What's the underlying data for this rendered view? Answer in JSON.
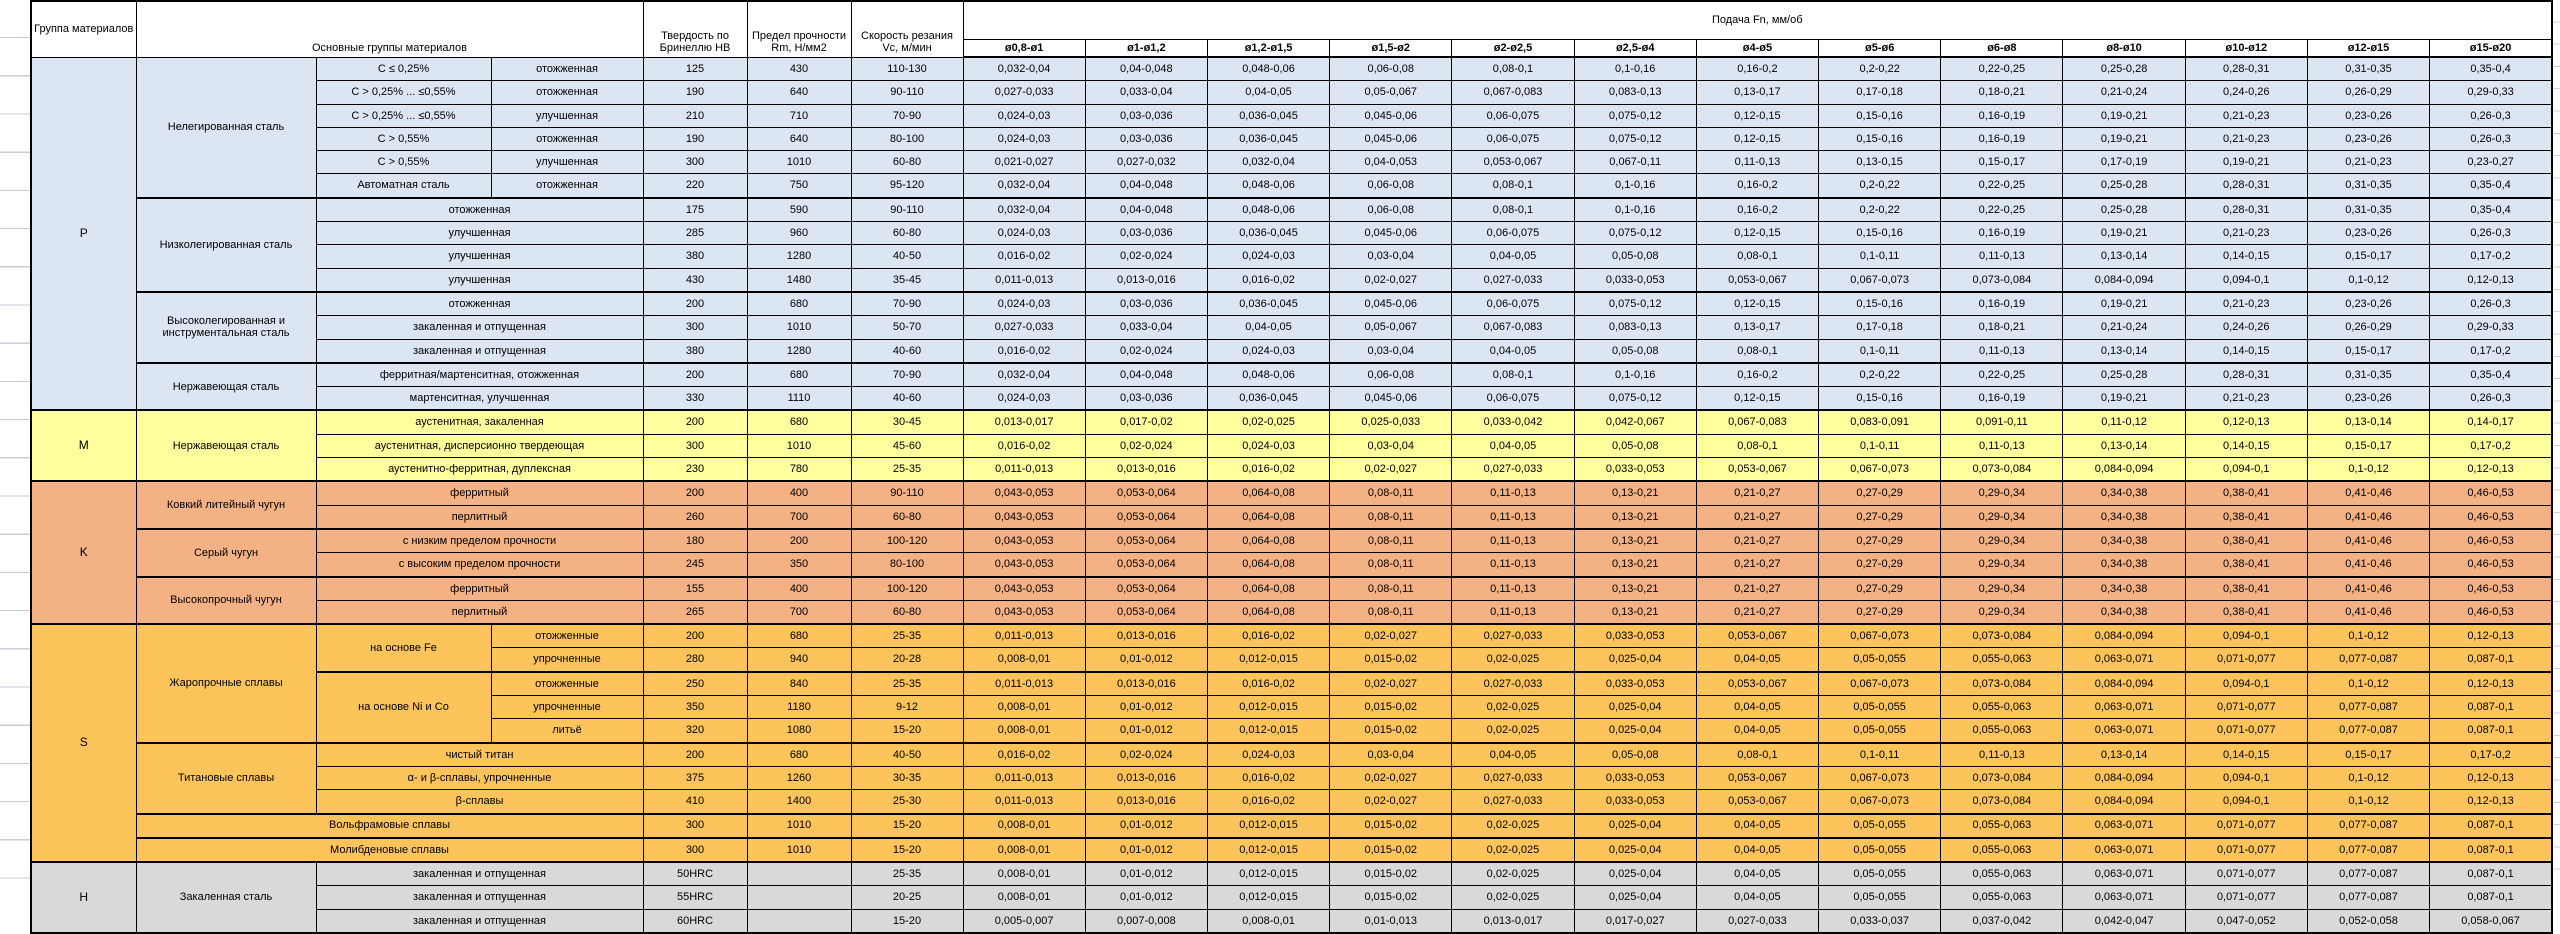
{
  "header": {
    "group_col": "Группа материалов",
    "materials_col": "Основные группы материалов",
    "hardness_col": "Твердость по Бринеллю HB",
    "strength_col": "Предел прочности Rm, Н/мм2",
    "speed_col": "Скорость резания Vc, м/мин",
    "feed_col": "Подача Fn, мм/об",
    "feed_columns": [
      "ø0,8-ø1",
      "ø1-ø1,2",
      "ø1,2-ø1,5",
      "ø1,5-ø2",
      "ø2-ø2,5",
      "ø2,5-ø4",
      "ø4-ø5",
      "ø5-ø6",
      "ø6-ø8",
      "ø8-ø10",
      "ø10-ø12",
      "ø12-ø15",
      "ø15-ø20"
    ]
  },
  "group_colors": {
    "P": "#dce6f2",
    "M": "#ffff9e",
    "K": "#f4b183",
    "S": "#fcc45a",
    "H": "#d9d9d9"
  },
  "feed_patterns": {
    "A": [
      "0,032-0,04",
      "0,04-0,048",
      "0,048-0,06",
      "0,06-0,08",
      "0,08-0,1",
      "0,1-0,16",
      "0,16-0,2",
      "0,2-0,22",
      "0,22-0,25",
      "0,25-0,28",
      "0,28-0,31",
      "0,31-0,35",
      "0,35-0,4"
    ],
    "B": [
      "0,027-0,033",
      "0,033-0,04",
      "0,04-0,05",
      "0,05-0,067",
      "0,067-0,083",
      "0,083-0,13",
      "0,13-0,17",
      "0,17-0,18",
      "0,18-0,21",
      "0,21-0,24",
      "0,24-0,26",
      "0,26-0,29",
      "0,29-0,33"
    ],
    "C": [
      "0,024-0,03",
      "0,03-0,036",
      "0,036-0,045",
      "0,045-0,06",
      "0,06-0,075",
      "0,075-0,12",
      "0,12-0,15",
      "0,15-0,16",
      "0,16-0,19",
      "0,19-0,21",
      "0,21-0,23",
      "0,23-0,26",
      "0,26-0,3"
    ],
    "D": [
      "0,021-0,027",
      "0,027-0,032",
      "0,032-0,04",
      "0,04-0,053",
      "0,053-0,067",
      "0,067-0,11",
      "0,11-0,13",
      "0,13-0,15",
      "0,15-0,17",
      "0,17-0,19",
      "0,19-0,21",
      "0,21-0,23",
      "0,23-0,27"
    ],
    "E": [
      "0,016-0,02",
      "0,02-0,024",
      "0,024-0,03",
      "0,03-0,04",
      "0,04-0,05",
      "0,05-0,08",
      "0,08-0,1",
      "0,1-0,11",
      "0,11-0,13",
      "0,13-0,14",
      "0,14-0,15",
      "0,15-0,17",
      "0,17-0,2"
    ],
    "F": [
      "0,011-0,013",
      "0,013-0,016",
      "0,016-0,02",
      "0,02-0,027",
      "0,027-0,033",
      "0,033-0,053",
      "0,053-0,067",
      "0,067-0,073",
      "0,073-0,084",
      "0,084-0,094",
      "0,094-0,1",
      "0,1-0,12",
      "0,12-0,13"
    ],
    "G": [
      "0,013-0,017",
      "0,017-0,02",
      "0,02-0,025",
      "0,025-0,033",
      "0,033-0,042",
      "0,042-0,067",
      "0,067-0,083",
      "0,083-0,091",
      "0,091-0,11",
      "0,11-0,12",
      "0,12-0,13",
      "0,13-0,14",
      "0,14-0,17"
    ],
    "K": [
      "0,043-0,053",
      "0,053-0,064",
      "0,064-0,08",
      "0,08-0,11",
      "0,11-0,13",
      "0,13-0,21",
      "0,21-0,27",
      "0,27-0,29",
      "0,29-0,34",
      "0,34-0,38",
      "0,38-0,41",
      "0,41-0,46",
      "0,46-0,53"
    ],
    "S": [
      "0,008-0,01",
      "0,01-0,012",
      "0,012-0,015",
      "0,015-0,02",
      "0,02-0,025",
      "0,025-0,04",
      "0,04-0,05",
      "0,05-0,055",
      "0,055-0,063",
      "0,063-0,071",
      "0,071-0,077",
      "0,077-0,087",
      "0,087-0,1"
    ],
    "Z": [
      "0,005-0,007",
      "0,007-0,008",
      "0,008-0,01",
      "0,01-0,013",
      "0,013-0,017",
      "0,017-0,027",
      "0,027-0,033",
      "0,033-0,037",
      "0,037-0,042",
      "0,042-0,047",
      "0,047-0,052",
      "0,052-0,058",
      "0,058-0,067"
    ]
  },
  "rows": [
    {
      "g": "P",
      "group": {
        "text": "P",
        "rowspan": 15
      },
      "labels": [
        {
          "t": "Нелегированная сталь",
          "rs": 6
        },
        {
          "t": "C ≤ 0,25%"
        },
        {
          "t": "отожженная"
        }
      ],
      "hb": "125",
      "rm": "430",
      "vc": "110-130",
      "feed": "A"
    },
    {
      "g": "P",
      "labels": [
        {
          "t": "C > 0,25% ... ≤0,55%"
        },
        {
          "t": "отожженная"
        }
      ],
      "hb": "190",
      "rm": "640",
      "vc": "90-110",
      "feed": "B"
    },
    {
      "g": "P",
      "labels": [
        {
          "t": "C > 0,25% ... ≤0,55%"
        },
        {
          "t": "улучшенная"
        }
      ],
      "hb": "210",
      "rm": "710",
      "vc": "70-90",
      "feed": "C"
    },
    {
      "g": "P",
      "labels": [
        {
          "t": "C > 0,55%"
        },
        {
          "t": "отожженная"
        }
      ],
      "hb": "190",
      "rm": "640",
      "vc": "80-100",
      "feed": "C"
    },
    {
      "g": "P",
      "labels": [
        {
          "t": "C > 0,55%"
        },
        {
          "t": "улучшенная"
        }
      ],
      "hb": "300",
      "rm": "1010",
      "vc": "60-80",
      "feed": "D"
    },
    {
      "g": "P",
      "labels": [
        {
          "t": "Автоматная сталь"
        },
        {
          "t": "отожженная"
        }
      ],
      "hb": "220",
      "rm": "750",
      "vc": "95-120",
      "feed": "A"
    },
    {
      "g": "P",
      "thick": true,
      "labels": [
        {
          "t": "Низколегированная сталь",
          "rs": 4
        },
        {
          "t": "отожженная",
          "cs": 2
        }
      ],
      "hb": "175",
      "rm": "590",
      "vc": "90-110",
      "feed": "A"
    },
    {
      "g": "P",
      "labels": [
        {
          "t": "улучшенная",
          "cs": 2
        }
      ],
      "hb": "285",
      "rm": "960",
      "vc": "60-80",
      "feed": "C"
    },
    {
      "g": "P",
      "labels": [
        {
          "t": "улучшенная",
          "cs": 2
        }
      ],
      "hb": "380",
      "rm": "1280",
      "vc": "40-50",
      "feed": "E"
    },
    {
      "g": "P",
      "labels": [
        {
          "t": "улучшенная",
          "cs": 2
        }
      ],
      "hb": "430",
      "rm": "1480",
      "vc": "35-45",
      "feed": "F"
    },
    {
      "g": "P",
      "thick": true,
      "labels": [
        {
          "t": "Высоколегированная и инструментальная сталь",
          "rs": 3
        },
        {
          "t": "отожженная",
          "cs": 2
        }
      ],
      "hb": "200",
      "rm": "680",
      "vc": "70-90",
      "feed": "C"
    },
    {
      "g": "P",
      "labels": [
        {
          "t": "закаленная и отпущенная",
          "cs": 2
        }
      ],
      "hb": "300",
      "rm": "1010",
      "vc": "50-70",
      "feed": "B"
    },
    {
      "g": "P",
      "labels": [
        {
          "t": "закаленная и отпущенная",
          "cs": 2
        }
      ],
      "hb": "380",
      "rm": "1280",
      "vc": "40-60",
      "feed": "E"
    },
    {
      "g": "P",
      "thick": true,
      "labels": [
        {
          "t": "Нержавеющая сталь",
          "rs": 2
        },
        {
          "t": "ферритная/мартенситная, отожженная",
          "cs": 2
        }
      ],
      "hb": "200",
      "rm": "680",
      "vc": "70-90",
      "feed": "A"
    },
    {
      "g": "P",
      "labels": [
        {
          "t": "мартенситная, улучшенная",
          "cs": 2
        }
      ],
      "hb": "330",
      "rm": "1110",
      "vc": "40-60",
      "feed": "C"
    },
    {
      "g": "M",
      "thick": true,
      "group": {
        "text": "M",
        "rowspan": 3
      },
      "labels": [
        {
          "t": "Нержавеющая сталь",
          "rs": 3
        },
        {
          "t": "аустенитная, закаленная",
          "cs": 2
        }
      ],
      "hb": "200",
      "rm": "680",
      "vc": "30-45",
      "feed": "G"
    },
    {
      "g": "M",
      "labels": [
        {
          "t": "аустенитная, дисперсионно твердеющая",
          "cs": 2
        }
      ],
      "hb": "300",
      "rm": "1010",
      "vc": "45-60",
      "feed": "E"
    },
    {
      "g": "M",
      "labels": [
        {
          "t": "аустенитно-ферритная, дуплексная",
          "cs": 2
        }
      ],
      "hb": "230",
      "rm": "780",
      "vc": "25-35",
      "feed": "F"
    },
    {
      "g": "K",
      "thick": true,
      "group": {
        "text": "K",
        "rowspan": 6
      },
      "labels": [
        {
          "t": "Ковкий литейный чугун",
          "rs": 2
        },
        {
          "t": "ферритный",
          "cs": 2
        }
      ],
      "hb": "200",
      "rm": "400",
      "vc": "90-110",
      "feed": "K"
    },
    {
      "g": "K",
      "labels": [
        {
          "t": "перлитный",
          "cs": 2
        }
      ],
      "hb": "260",
      "rm": "700",
      "vc": "60-80",
      "feed": "K"
    },
    {
      "g": "K",
      "thick": true,
      "labels": [
        {
          "t": "Серый чугун",
          "rs": 2
        },
        {
          "t": "с низким пределом прочности",
          "cs": 2
        }
      ],
      "hb": "180",
      "rm": "200",
      "vc": "100-120",
      "feed": "K"
    },
    {
      "g": "K",
      "labels": [
        {
          "t": "с высоким пределом прочности",
          "cs": 2
        }
      ],
      "hb": "245",
      "rm": "350",
      "vc": "80-100",
      "feed": "K"
    },
    {
      "g": "K",
      "thick": true,
      "labels": [
        {
          "t": "Высокопрочный чугун",
          "rs": 2
        },
        {
          "t": "ферритный",
          "cs": 2
        }
      ],
      "hb": "155",
      "rm": "400",
      "vc": "100-120",
      "feed": "K"
    },
    {
      "g": "K",
      "labels": [
        {
          "t": "перлитный",
          "cs": 2
        }
      ],
      "hb": "265",
      "rm": "700",
      "vc": "60-80",
      "feed": "K"
    },
    {
      "g": "S",
      "thick": true,
      "group": {
        "text": "S",
        "rowspan": 10
      },
      "labels": [
        {
          "t": "Жаропрочные сплавы",
          "rs": 5
        },
        {
          "t": "на основе Fe",
          "rs": 2
        },
        {
          "t": "отожженные"
        }
      ],
      "hb": "200",
      "rm": "680",
      "vc": "25-35",
      "feed": "F"
    },
    {
      "g": "S",
      "labels": [
        {
          "t": "упрочненные"
        }
      ],
      "hb": "280",
      "rm": "940",
      "vc": "20-28",
      "feed": "S"
    },
    {
      "g": "S",
      "thick": true,
      "labels": [
        {
          "t": "на основе Ni и Co",
          "rs": 3
        },
        {
          "t": "отожженные"
        }
      ],
      "hb": "250",
      "rm": "840",
      "vc": "25-35",
      "feed": "F"
    },
    {
      "g": "S",
      "labels": [
        {
          "t": "упрочненные"
        }
      ],
      "hb": "350",
      "rm": "1180",
      "vc": "9-12",
      "feed": "S"
    },
    {
      "g": "S",
      "labels": [
        {
          "t": "литьё"
        }
      ],
      "hb": "320",
      "rm": "1080",
      "vc": "15-20",
      "feed": "S"
    },
    {
      "g": "S",
      "thick": true,
      "labels": [
        {
          "t": "Титановые сплавы",
          "rs": 3
        },
        {
          "t": "чистый титан",
          "cs": 2
        }
      ],
      "hb": "200",
      "rm": "680",
      "vc": "40-50",
      "feed": "E"
    },
    {
      "g": "S",
      "labels": [
        {
          "t": "α- и β-сплавы, упрочненные",
          "cs": 2
        }
      ],
      "hb": "375",
      "rm": "1260",
      "vc": "30-35",
      "feed": "F"
    },
    {
      "g": "S",
      "labels": [
        {
          "t": "β-сплавы",
          "cs": 2
        }
      ],
      "hb": "410",
      "rm": "1400",
      "vc": "25-30",
      "feed": "F"
    },
    {
      "g": "S",
      "thick": true,
      "labels": [
        {
          "t": "Вольфрамовые сплавы",
          "cs": 3
        }
      ],
      "hb": "300",
      "rm": "1010",
      "vc": "15-20",
      "feed": "S"
    },
    {
      "g": "S",
      "thick": true,
      "labels": [
        {
          "t": "Молибденовые сплавы",
          "cs": 3
        }
      ],
      "hb": "300",
      "rm": "1010",
      "vc": "15-20",
      "feed": "S"
    },
    {
      "g": "H",
      "thick": true,
      "group": {
        "text": "H",
        "rowspan": 3
      },
      "labels": [
        {
          "t": "Закаленная сталь",
          "rs": 3
        },
        {
          "t": "закаленная и отпущенная",
          "cs": 2
        }
      ],
      "hb": "50HRC",
      "rm": "",
      "vc": "25-35",
      "feed": "S"
    },
    {
      "g": "H",
      "labels": [
        {
          "t": "закаленная и отпущенная",
          "cs": 2
        }
      ],
      "hb": "55HRC",
      "rm": "",
      "vc": "20-25",
      "feed": "S"
    },
    {
      "g": "H",
      "labels": [
        {
          "t": "закаленная и отпущенная",
          "cs": 2
        }
      ],
      "hb": "60HRC",
      "rm": "",
      "vc": "15-20",
      "feed": "Z"
    }
  ]
}
